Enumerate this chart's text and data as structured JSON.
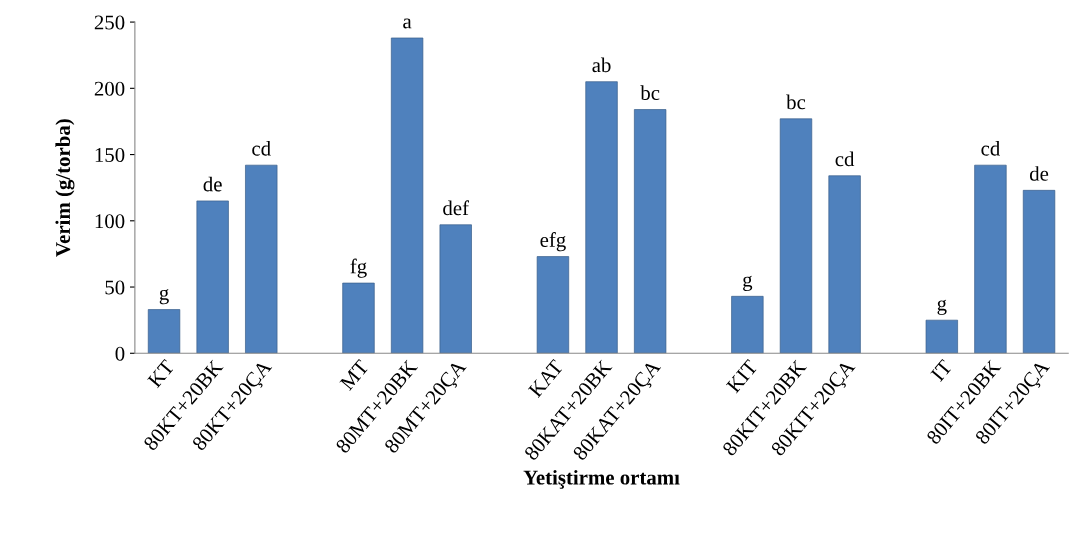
{
  "chart_data": {
    "type": "bar",
    "xlabel": "Yetiştirme ortamı",
    "ylabel": "Verim (g/torba)",
    "categories": [
      "KT",
      "80KT+20BK",
      "80KT+20ÇA",
      null,
      "MT",
      "80MT+20BK",
      "80MT+20ÇA",
      null,
      "KAT",
      "80KAT+20BK",
      "80KAT+20ÇA",
      null,
      "KIT",
      "80KIT+20BK",
      "80KIT+20ÇA",
      null,
      "IT",
      "80IT+20BK",
      "80IT+20ÇA"
    ],
    "values": [
      33,
      115,
      142,
      null,
      53,
      238,
      97,
      null,
      73,
      205,
      184,
      null,
      43,
      177,
      134,
      null,
      25,
      142,
      123
    ],
    "value_labels": [
      "g",
      "de",
      "cd",
      null,
      "fg",
      "a",
      "def",
      null,
      "efg",
      "ab",
      "bc",
      null,
      "g",
      "bc",
      "cd",
      null,
      "g",
      "cd",
      "de"
    ],
    "color": "#4f81bd",
    "ylim": [
      0,
      250
    ],
    "yticks": [
      0,
      50,
      100,
      150,
      200,
      250
    ],
    "grid": false,
    "legend": false
  }
}
